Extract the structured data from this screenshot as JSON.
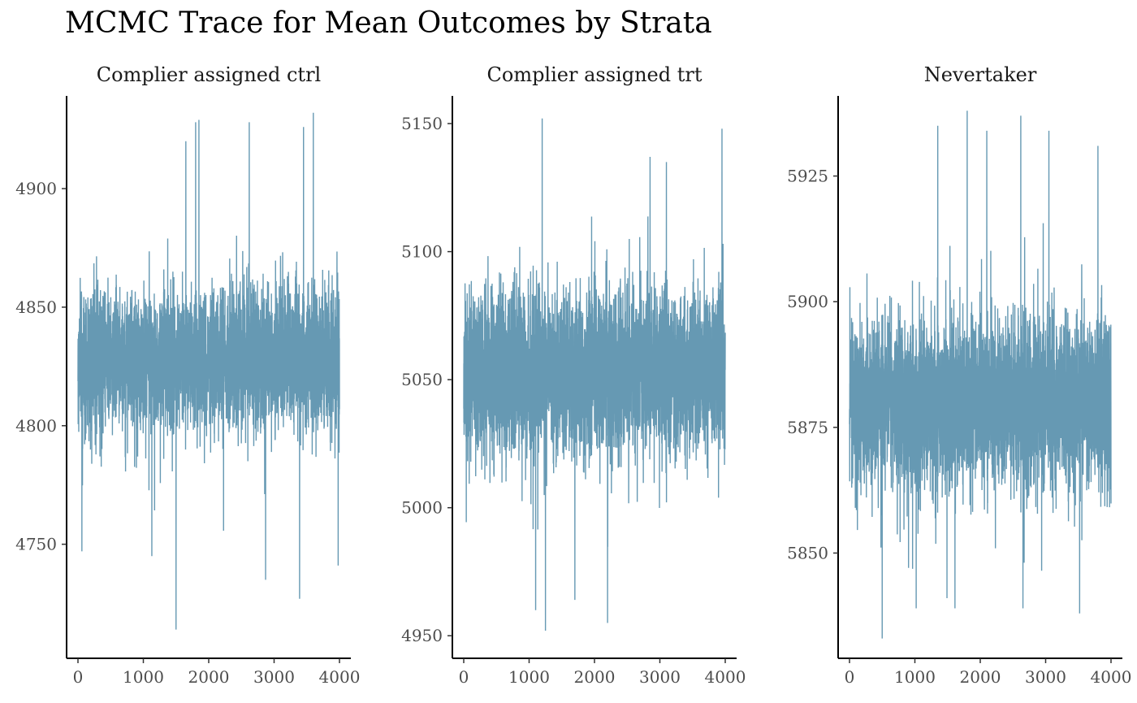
{
  "chart_data": {
    "type": "line",
    "title": "MCMC Trace for Mean Outcomes by Strata",
    "xlabel": "",
    "ylabel": "",
    "series_color": "#6699b3",
    "grid": false,
    "panels": [
      {
        "name": "Complier assigned ctrl",
        "xlim": [
          0,
          4000
        ],
        "x_ticks": [
          0,
          1000,
          2000,
          3000,
          4000
        ],
        "ylim": [
          4706,
          4935
        ],
        "y_ticks": [
          4750,
          4800,
          4850,
          4900
        ],
        "center": 4828,
        "sd": 14,
        "min": 4714,
        "max": 4932,
        "spikes": [
          {
            "x": 60,
            "y": 4747
          },
          {
            "x": 1130,
            "y": 4745
          },
          {
            "x": 1500,
            "y": 4714
          },
          {
            "x": 1800,
            "y": 4928
          },
          {
            "x": 1850,
            "y": 4929
          },
          {
            "x": 2620,
            "y": 4928
          },
          {
            "x": 3450,
            "y": 4926
          },
          {
            "x": 3600,
            "y": 4932
          },
          {
            "x": 2870,
            "y": 4735
          },
          {
            "x": 3390,
            "y": 4727
          },
          {
            "x": 1650,
            "y": 4920
          },
          {
            "x": 3980,
            "y": 4741
          }
        ]
      },
      {
        "name": "Complier assigned trt",
        "xlim": [
          0,
          4000
        ],
        "x_ticks": [
          0,
          1000,
          2000,
          3000,
          4000
        ],
        "ylim": [
          4945,
          5157
        ],
        "y_ticks": [
          4950,
          5000,
          5050,
          5100,
          5150
        ],
        "center": 5053,
        "sd": 15,
        "min": 4952,
        "max": 5152,
        "spikes": [
          {
            "x": 1200,
            "y": 5152
          },
          {
            "x": 3950,
            "y": 5148
          },
          {
            "x": 1250,
            "y": 4952
          },
          {
            "x": 2200,
            "y": 4955
          },
          {
            "x": 1100,
            "y": 4960
          },
          {
            "x": 3100,
            "y": 4968
          },
          {
            "x": 2850,
            "y": 5137
          },
          {
            "x": 3100,
            "y": 5135
          },
          {
            "x": 1700,
            "y": 4964
          }
        ]
      },
      {
        "name": "Nevertaker",
        "xlim": [
          0,
          4000
        ],
        "x_ticks": [
          0,
          1000,
          2000,
          3000,
          4000
        ],
        "ylim": [
          5831,
          5939
        ],
        "y_ticks": [
          5850,
          5875,
          5900,
          5925
        ],
        "center": 5880,
        "sd": 8,
        "min": 5833,
        "max": 5938,
        "spikes": [
          {
            "x": 1800,
            "y": 5938
          },
          {
            "x": 2620,
            "y": 5937
          },
          {
            "x": 500,
            "y": 5833
          },
          {
            "x": 3520,
            "y": 5838
          },
          {
            "x": 1350,
            "y": 5935
          },
          {
            "x": 3050,
            "y": 5934
          },
          {
            "x": 3800,
            "y": 5931
          },
          {
            "x": 2100,
            "y": 5934
          }
        ]
      }
    ]
  }
}
